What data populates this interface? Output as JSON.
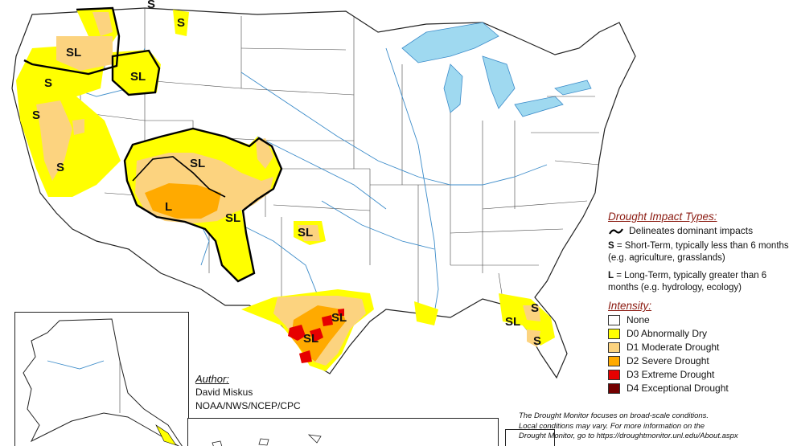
{
  "map": {
    "impact_labels": [
      "SL",
      "SL",
      "S",
      "S",
      "S",
      "SL",
      "L",
      "SL",
      "SL",
      "SL",
      "SL",
      "S",
      "SL",
      "S",
      "S",
      "S"
    ]
  },
  "legend": {
    "impact_title": "Drought Impact Types:",
    "impact_line": "Delineates dominant impacts",
    "short_term_letter": "S",
    "short_term_text": "= Short-Term, typically less than 6 months (e.g. agriculture, grasslands)",
    "long_term_letter": "L",
    "long_term_text": "= Long-Term, typically greater than 6 months (e.g. hydrology, ecology)",
    "intensity_title": "Intensity:",
    "intensity": [
      {
        "label": "None",
        "color": "#ffffff"
      },
      {
        "label": "D0 Abnormally Dry",
        "color": "#ffff00"
      },
      {
        "label": "D1 Moderate Drought",
        "color": "#fcd37f"
      },
      {
        "label": "D2 Severe Drought",
        "color": "#ffaa00"
      },
      {
        "label": "D3 Extreme Drought",
        "color": "#e60000"
      },
      {
        "label": "D4 Exceptional Drought",
        "color": "#730000"
      }
    ]
  },
  "author": {
    "title": "Author:",
    "name": "David Miskus",
    "org": "NOAA/NWS/NCEP/CPC"
  },
  "disclaimer": {
    "line1": "The Drought Monitor focuses on broad-scale conditions.",
    "line2": "Local conditions may vary. For more information on the",
    "line3": "Drought Monitor, go to https://droughtmonitor.unl.edu/About.aspx"
  }
}
